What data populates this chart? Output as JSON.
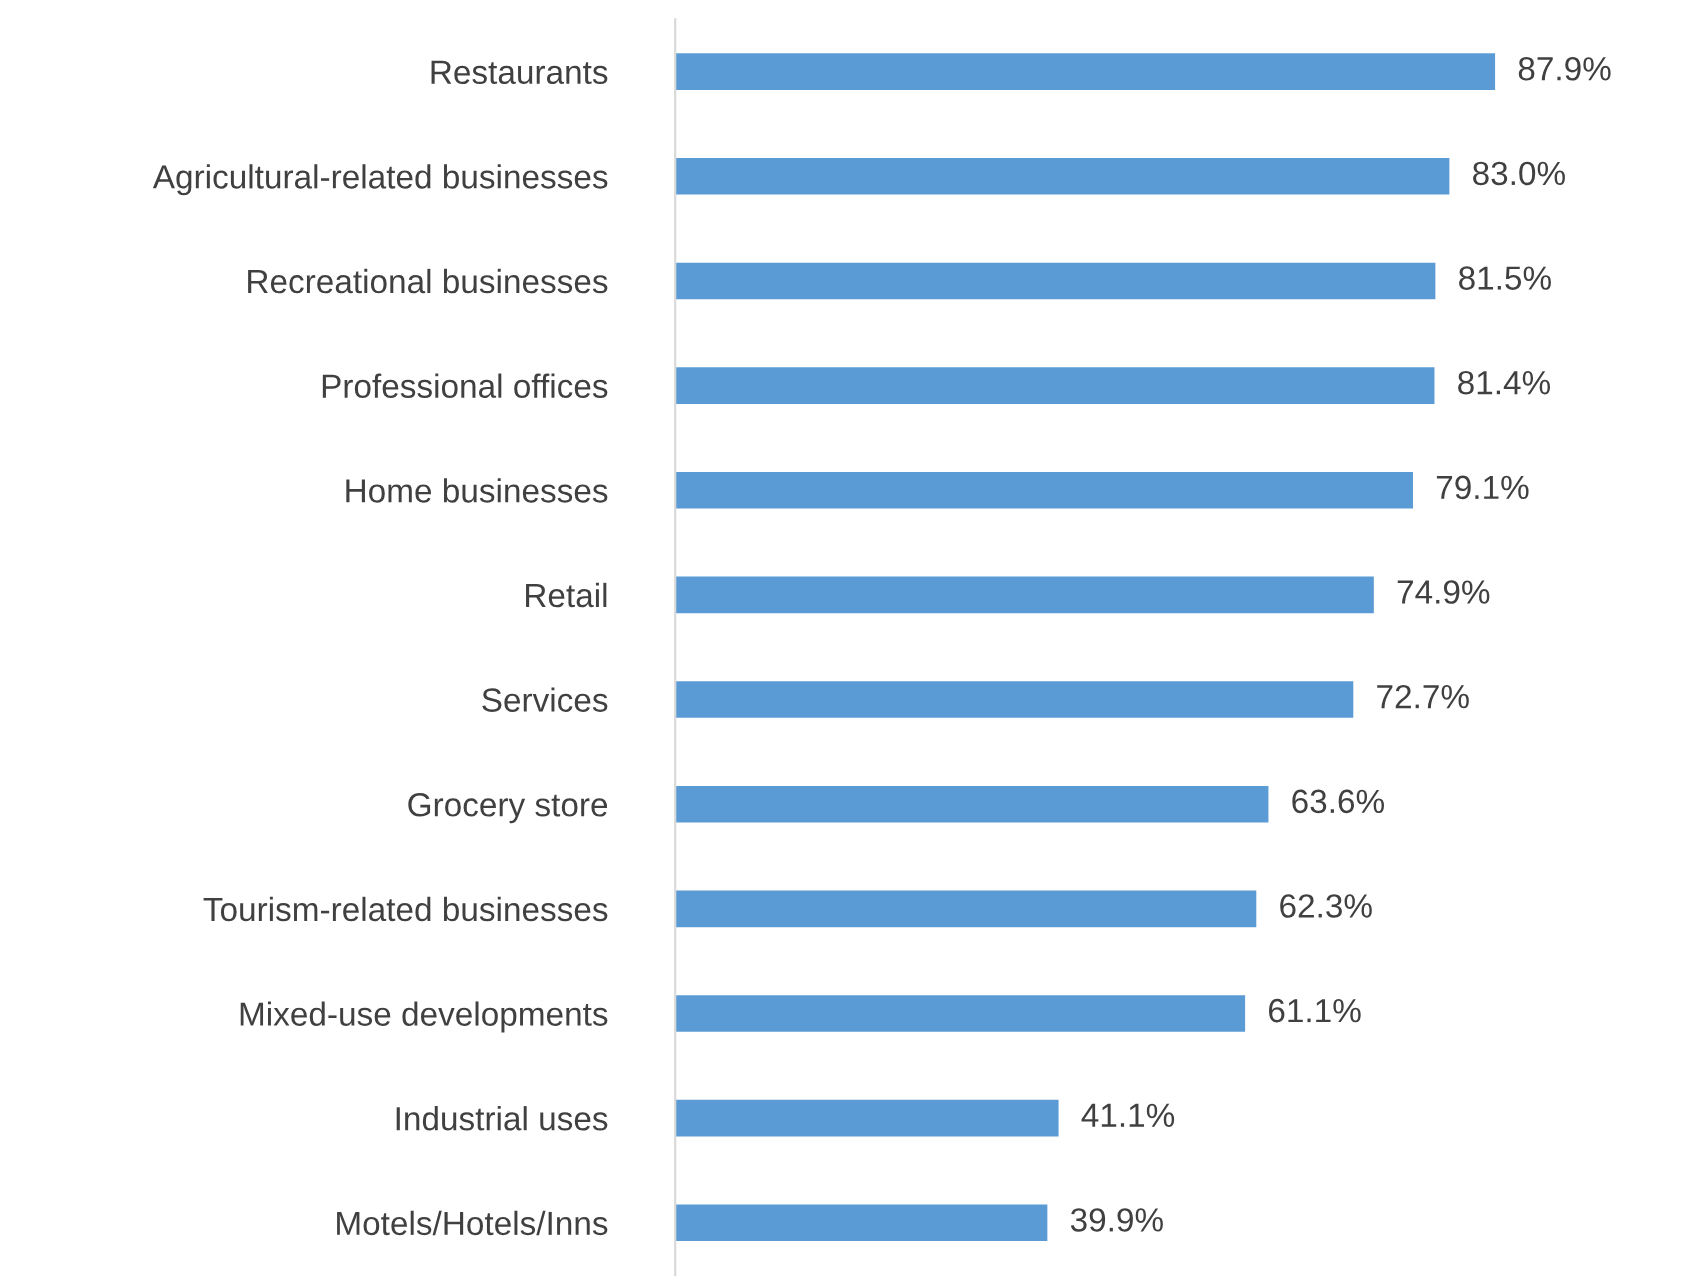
{
  "chart_data": {
    "type": "bar",
    "orientation": "horizontal",
    "categories": [
      "Restaurants",
      "Agricultural-related businesses",
      "Recreational businesses",
      "Professional offices",
      "Home businesses",
      "Retail",
      "Services",
      "Grocery store",
      "Tourism-related businesses",
      "Mixed-use developments",
      "Industrial uses",
      "Motels/Hotels/Inns"
    ],
    "values": [
      87.9,
      83.0,
      81.5,
      81.4,
      79.1,
      74.9,
      72.7,
      63.6,
      62.3,
      61.1,
      41.1,
      39.9
    ],
    "value_labels": [
      "87.9%",
      "83.0%",
      "81.5%",
      "81.4%",
      "79.1%",
      "74.9%",
      "72.7%",
      "63.6%",
      "62.3%",
      "61.1%",
      "41.1%",
      "39.9%"
    ],
    "color": "#5b9bd5"
  }
}
